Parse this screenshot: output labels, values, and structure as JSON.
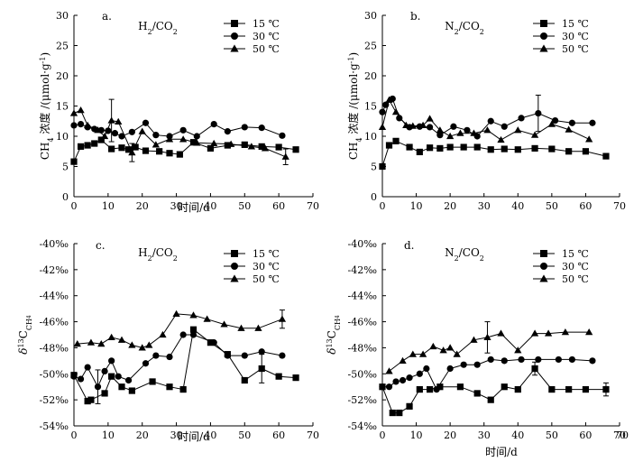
{
  "chart_data": [
    {
      "type": "line",
      "panel": "a.",
      "title": "H2/CO2",
      "title_parts": [
        "H",
        "2",
        "/CO",
        "2"
      ],
      "xlabel": "时间/d",
      "ylabel": "CH4 浓度 /(μmol·g-1)",
      "ylabel_parts": [
        "CH",
        "4",
        " 浓度 /(μmol·g",
        "-1",
        ")"
      ],
      "xlim": [
        0,
        70
      ],
      "ylim": [
        0,
        30
      ],
      "xticks": [
        "0",
        "10",
        "20",
        "30",
        "40",
        "50",
        "60",
        "70"
      ],
      "yticks": [
        "0",
        "5",
        "10",
        "15",
        "20",
        "25",
        "30"
      ],
      "legend_position": "top-right",
      "series": [
        {
          "name": "15 ℃",
          "marker": "square",
          "x": [
            0,
            2,
            4,
            6,
            8,
            11,
            14,
            16,
            18,
            21,
            25,
            28,
            31,
            35,
            40,
            45,
            50,
            55,
            60,
            65
          ],
          "y": [
            5.8,
            8.3,
            8.5,
            8.8,
            9.4,
            7.9,
            8.1,
            7.8,
            8.2,
            7.6,
            7.5,
            7.2,
            7.0,
            9.0,
            8.0,
            8.5,
            8.6,
            8.3,
            8.2,
            7.8
          ]
        },
        {
          "name": "30 ℃",
          "marker": "circle",
          "x": [
            0,
            2,
            4,
            6,
            8,
            10,
            12,
            14,
            17,
            21,
            24,
            28,
            32,
            36,
            41,
            45,
            50,
            55,
            61
          ],
          "y": [
            11.8,
            12.0,
            11.5,
            11.2,
            11.0,
            10.9,
            10.5,
            10.0,
            10.7,
            12.2,
            10.2,
            10.0,
            11.0,
            10.0,
            12.0,
            10.8,
            11.5,
            11.4,
            10.1
          ]
        },
        {
          "name": "50 ℃",
          "marker": "triangle",
          "x": [
            0,
            2,
            4,
            7,
            9,
            11,
            13,
            17,
            20,
            24,
            28,
            32,
            36,
            41,
            46,
            52,
            56,
            62
          ],
          "y": [
            13.8,
            14.3,
            11.8,
            11.0,
            10.0,
            12.6,
            12.4,
            7.3,
            10.8,
            8.6,
            9.5,
            9.5,
            8.9,
            8.8,
            8.7,
            8.3,
            8.0,
            6.6
          ],
          "error_x": [
            11,
            17,
            62
          ],
          "error_val": [
            3.5,
            1.5,
            1.3
          ]
        }
      ]
    },
    {
      "type": "line",
      "panel": "b.",
      "title": "N2/CO2",
      "title_parts": [
        "N",
        "2",
        "/CO",
        "2"
      ],
      "xlabel": "",
      "ylabel": "CH4 浓度 /(μmol·g-1)",
      "ylabel_parts": [
        "CH",
        "4",
        " 浓度 /(μmol·g",
        "-1",
        ")"
      ],
      "xlim": [
        0,
        70
      ],
      "ylim": [
        0,
        30
      ],
      "xticks": [
        "0",
        "10",
        "20",
        "30",
        "40",
        "50",
        "60",
        "70"
      ],
      "yticks": [
        "0",
        "5",
        "10",
        "15",
        "20",
        "25",
        "30"
      ],
      "legend_position": "top-right",
      "series": [
        {
          "name": "15 ℃",
          "marker": "square",
          "x": [
            0,
            2,
            4,
            8,
            11,
            14,
            17,
            20,
            24,
            28,
            32,
            36,
            40,
            45,
            50,
            55,
            60,
            66
          ],
          "y": [
            5.0,
            8.5,
            9.2,
            8.2,
            7.4,
            8.1,
            8.0,
            8.2,
            8.2,
            8.2,
            7.8,
            7.9,
            7.8,
            8.0,
            7.9,
            7.5,
            7.5,
            6.7
          ]
        },
        {
          "name": "30 ℃",
          "marker": "circle",
          "x": [
            0,
            1,
            3,
            5,
            8,
            11,
            14,
            17,
            21,
            25,
            28,
            32,
            36,
            41,
            46,
            51,
            56,
            62
          ],
          "y": [
            14.0,
            15.2,
            16.2,
            13.0,
            11.5,
            11.6,
            11.5,
            10.2,
            11.6,
            11.0,
            10.0,
            12.5,
            11.6,
            13.0,
            13.8,
            12.6,
            12.2,
            12.2
          ],
          "error_x": [
            46
          ],
          "error_val": [
            3.0
          ]
        },
        {
          "name": "50 ℃",
          "marker": "triangle",
          "x": [
            0,
            2,
            4,
            7,
            9,
            12,
            14,
            17,
            20,
            23,
            27,
            31,
            35,
            40,
            45,
            50,
            55,
            61
          ],
          "y": [
            11.5,
            16.0,
            14.0,
            11.8,
            11.7,
            11.8,
            12.9,
            11.0,
            10.0,
            10.5,
            10.5,
            11.0,
            9.4,
            11.0,
            10.2,
            12.0,
            11.1,
            9.5
          ]
        }
      ]
    },
    {
      "type": "line",
      "panel": "c.",
      "title": "H2/CO2",
      "title_parts": [
        "H",
        "2",
        "/CO",
        "2"
      ],
      "xlabel": "时间/d",
      "ylabel": "δ13CCH4",
      "ylabel_parts": [
        "δ",
        "13",
        "C",
        "CH",
        "4"
      ],
      "xlim": [
        0,
        70
      ],
      "ylim": [
        -54,
        -40
      ],
      "xticks": [
        "0",
        "10",
        "20",
        "30",
        "40",
        "50",
        "60",
        "70"
      ],
      "yticks": [
        "-54‰",
        "-52‰",
        "-50‰",
        "-48‰",
        "-46‰",
        "-44‰",
        "-42‰",
        "-40‰"
      ],
      "legend_position": "top-right",
      "series": [
        {
          "name": "15 ℃",
          "marker": "square",
          "x": [
            0,
            4,
            5,
            9,
            11,
            14,
            17,
            23,
            28,
            32,
            35,
            40,
            45,
            50,
            55,
            60,
            65
          ],
          "y": [
            -50.1,
            -52.1,
            -52.0,
            -51.5,
            -50.2,
            -51.0,
            -51.3,
            -50.6,
            -51.0,
            -51.2,
            -46.6,
            -47.6,
            -48.5,
            -50.5,
            -49.6,
            -50.2,
            -50.3
          ],
          "error_x": [
            55
          ],
          "error_val": [
            1.1
          ]
        },
        {
          "name": "30 ℃",
          "marker": "circle",
          "x": [
            0,
            2,
            4,
            7,
            9,
            11,
            13,
            16,
            21,
            24,
            28,
            32,
            35,
            41,
            45,
            50,
            55,
            61
          ],
          "y": [
            -50.2,
            -50.4,
            -49.5,
            -51.0,
            -49.8,
            -49.0,
            -50.2,
            -50.5,
            -49.2,
            -48.6,
            -48.7,
            -47.0,
            -47.0,
            -47.6,
            -48.6,
            -48.6,
            -48.3,
            -48.6
          ],
          "error_x": [
            7
          ],
          "error_val": [
            1.3
          ]
        },
        {
          "name": "50 ℃",
          "marker": "triangle",
          "x": [
            1,
            5,
            8,
            11,
            14,
            17,
            20,
            22,
            26,
            30,
            35,
            39,
            44,
            49,
            54,
            61
          ],
          "y": [
            -47.7,
            -47.6,
            -47.7,
            -47.2,
            -47.4,
            -47.8,
            -48.0,
            -47.8,
            -47.0,
            -45.4,
            -45.5,
            -45.8,
            -46.2,
            -46.5,
            -46.5,
            -45.8
          ],
          "error_x": [
            61
          ],
          "error_val": [
            0.7
          ]
        }
      ]
    },
    {
      "type": "line",
      "panel": "d.",
      "title": "N2/CO2",
      "title_parts": [
        "N",
        "2",
        "/CO",
        "2"
      ],
      "xlabel": "时间/d",
      "ylabel": "δ13CCH4",
      "ylabel_parts": [
        "δ",
        "13",
        "C",
        "CH",
        "4"
      ],
      "xlim": [
        0,
        70
      ],
      "ylim": [
        -54,
        -40
      ],
      "xticks": [
        "0",
        "10",
        "20",
        "30",
        "40",
        "50",
        "60",
        "70"
      ],
      "extra_xtick": "70",
      "yticks": [
        "-54‰",
        "-52‰",
        "-50‰",
        "-48‰",
        "-46‰",
        "-44‰",
        "-42‰",
        "-40‰"
      ],
      "legend_position": "top-right",
      "series": [
        {
          "name": "15 ℃",
          "marker": "square",
          "x": [
            0,
            3,
            5,
            8,
            11,
            14,
            17,
            23,
            28,
            32,
            36,
            40,
            45,
            50,
            55,
            60,
            66
          ],
          "y": [
            -51.0,
            -53.0,
            -53.0,
            -52.5,
            -51.2,
            -51.2,
            -51.0,
            -51.0,
            -51.5,
            -52.0,
            -51.0,
            -51.2,
            -49.6,
            -51.2,
            -51.2,
            -51.2,
            -51.2
          ],
          "error_x": [
            15,
            45,
            66
          ],
          "error_val": [
            0.6,
            0.5,
            0.5
          ]
        },
        {
          "name": "30 ℃",
          "marker": "circle",
          "x": [
            0,
            2,
            4,
            6,
            8,
            11,
            13,
            16,
            20,
            24,
            28,
            32,
            36,
            41,
            46,
            52,
            56,
            62
          ],
          "y": [
            -51.0,
            -51.0,
            -50.6,
            -50.5,
            -50.3,
            -50.0,
            -49.6,
            -51.2,
            -49.6,
            -49.3,
            -49.3,
            -48.9,
            -49.0,
            -48.9,
            -48.9,
            -48.9,
            -48.9,
            -49.0
          ]
        },
        {
          "name": "50 ℃",
          "marker": "triangle",
          "x": [
            2,
            6,
            9,
            12,
            15,
            18,
            20,
            22,
            27,
            31,
            35,
            40,
            45,
            49,
            54,
            61
          ],
          "y": [
            -49.8,
            -49.0,
            -48.5,
            -48.5,
            -47.9,
            -48.2,
            -48.0,
            -48.5,
            -47.4,
            -47.2,
            -46.9,
            -48.2,
            -46.9,
            -46.9,
            -46.8,
            -46.8
          ],
          "error_x": [
            31
          ],
          "error_val": [
            1.2
          ]
        }
      ]
    }
  ]
}
